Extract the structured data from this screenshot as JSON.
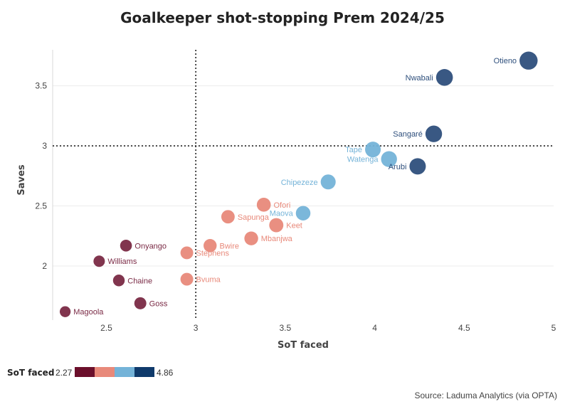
{
  "chart_data": {
    "type": "scatter",
    "title": "Goalkeeper shot-stopping Prem 2024/25",
    "xlabel": "SoT faced",
    "ylabel": "Saves",
    "xlim": [
      2.2,
      5.0
    ],
    "ylim": [
      1.55,
      3.8
    ],
    "xticks": [
      "2.5",
      "3",
      "3.5",
      "4",
      "4.5",
      "5"
    ],
    "xtick_values": [
      2.5,
      3,
      3.5,
      4,
      4.5,
      5
    ],
    "yticks": [
      "2",
      "2.5",
      "3",
      "3.5"
    ],
    "ytick_values": [
      2,
      2.5,
      3,
      3.5
    ],
    "grid": "horizontal",
    "reference_lines": {
      "x": 3,
      "y": 3,
      "style": "dotted"
    },
    "points": [
      {
        "label": "Otieno",
        "x": 4.86,
        "y": 3.71,
        "color": "#2e4f7c",
        "label_side": "left"
      },
      {
        "label": "Nwabali",
        "x": 4.39,
        "y": 3.57,
        "color": "#2e4f7c",
        "label_side": "left"
      },
      {
        "label": "Sangaré",
        "x": 4.33,
        "y": 3.1,
        "color": "#2e4f7c",
        "label_side": "left"
      },
      {
        "label": "Arubi",
        "x": 4.24,
        "y": 2.83,
        "color": "#2e4f7c",
        "label_side": "left"
      },
      {
        "label": "Tapé",
        "x": 3.99,
        "y": 2.97,
        "color": "#74b3d8",
        "label_side": "left"
      },
      {
        "label": "Watenga",
        "x": 4.08,
        "y": 2.89,
        "color": "#74b3d8",
        "label_side": "left"
      },
      {
        "label": "Chipezeze",
        "x": 3.74,
        "y": 2.7,
        "color": "#74b3d8",
        "label_side": "left"
      },
      {
        "label": "Maova",
        "x": 3.6,
        "y": 2.44,
        "color": "#74b3d8",
        "label_side": "left"
      },
      {
        "label": "Ofori",
        "x": 3.38,
        "y": 2.51,
        "color": "#e8897a",
        "label_side": "right"
      },
      {
        "label": "Sapunga",
        "x": 3.18,
        "y": 2.41,
        "color": "#e8897a",
        "label_side": "right"
      },
      {
        "label": "Keet",
        "x": 3.45,
        "y": 2.34,
        "color": "#e8897a",
        "label_side": "right"
      },
      {
        "label": "Mbanjwa",
        "x": 3.31,
        "y": 2.23,
        "color": "#e8897a",
        "label_side": "right"
      },
      {
        "label": "Bwire",
        "x": 3.08,
        "y": 2.17,
        "color": "#e8897a",
        "label_side": "right"
      },
      {
        "label": "Stephens",
        "x": 2.95,
        "y": 2.11,
        "color": "#e8897a",
        "label_side": "right"
      },
      {
        "label": "Bvuma",
        "x": 2.95,
        "y": 1.89,
        "color": "#e8897a",
        "label_side": "right"
      },
      {
        "label": "Onyango",
        "x": 2.61,
        "y": 2.17,
        "color": "#7a2a45",
        "label_side": "right"
      },
      {
        "label": "Williams",
        "x": 2.46,
        "y": 2.04,
        "color": "#7a2a45",
        "label_side": "right"
      },
      {
        "label": "Chaine",
        "x": 2.57,
        "y": 1.88,
        "color": "#7a2a45",
        "label_side": "right"
      },
      {
        "label": "Goss",
        "x": 2.69,
        "y": 1.69,
        "color": "#7a2a45",
        "label_side": "right"
      },
      {
        "label": "Magoola",
        "x": 2.27,
        "y": 1.62,
        "color": "#7a2a45",
        "label_side": "right"
      }
    ],
    "legend": {
      "title": "SoT faced",
      "min_label": "2.27",
      "max_label": "4.86",
      "colors": [
        "#6b0f2b",
        "#e8897a",
        "#74b3d8",
        "#0f3a6b"
      ],
      "placement": "bottom-left"
    }
  },
  "source": "Source: Laduma Analytics (via OPTA)"
}
